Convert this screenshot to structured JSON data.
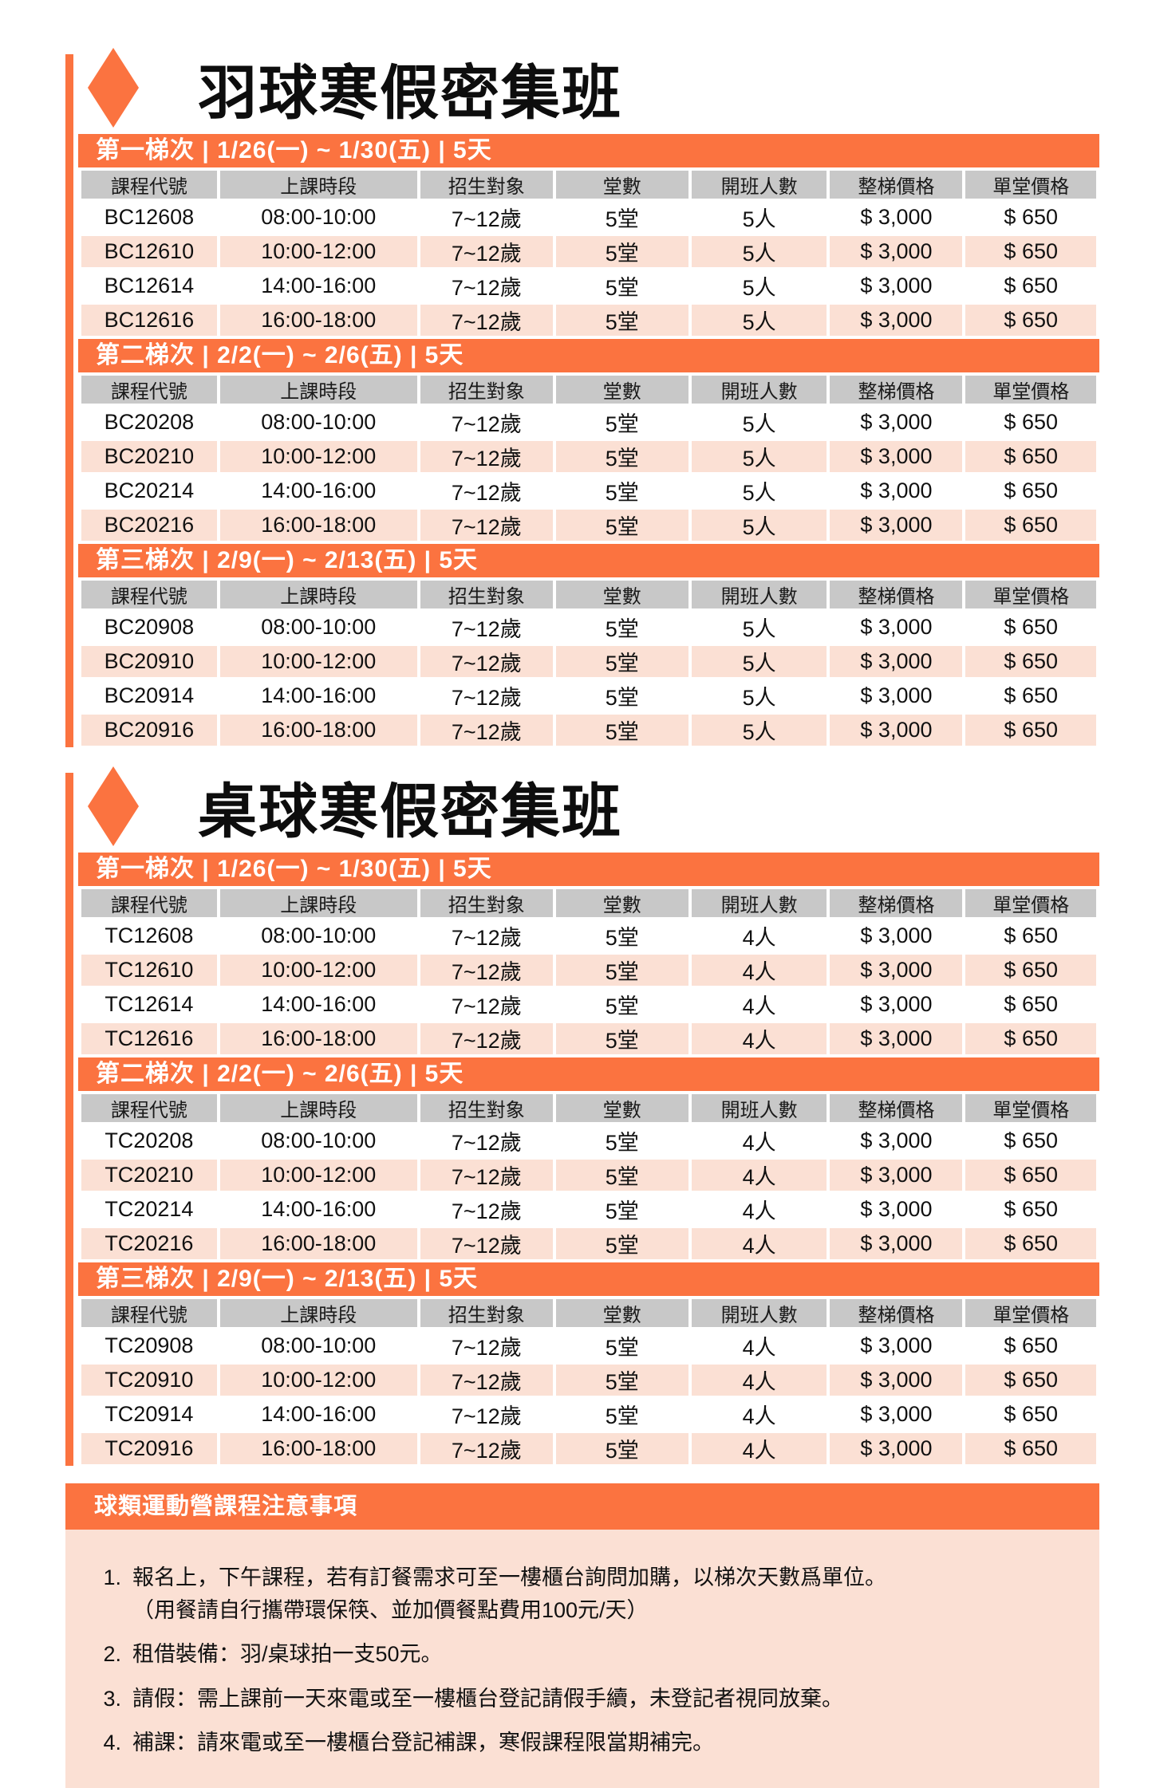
{
  "colors": {
    "accent_orange": "#FB7340",
    "row_pink": "#FBE0D4",
    "header_gray": "#C8C8C8",
    "text_black": "#111111",
    "bar_text_white": "#FFFFFF"
  },
  "table_headers": [
    "課程代號",
    "上課時段",
    "招生對象",
    "堂數",
    "開班人數",
    "整梯價格",
    "單堂價格"
  ],
  "sections": [
    {
      "id": "badminton",
      "title": "羽球寒假密集班",
      "icon": "diamond-icon",
      "sessions": [
        {
          "label": "第一梯次 | 1/26(一) ~ 1/30(五) | 5天",
          "rows": [
            [
              "BC12608",
              "08:00-10:00",
              "7~12歲",
              "5堂",
              "5人",
              "$ 3,000",
              "$ 650"
            ],
            [
              "BC12610",
              "10:00-12:00",
              "7~12歲",
              "5堂",
              "5人",
              "$ 3,000",
              "$ 650"
            ],
            [
              "BC12614",
              "14:00-16:00",
              "7~12歲",
              "5堂",
              "5人",
              "$ 3,000",
              "$ 650"
            ],
            [
              "BC12616",
              "16:00-18:00",
              "7~12歲",
              "5堂",
              "5人",
              "$ 3,000",
              "$ 650"
            ]
          ]
        },
        {
          "label": "第二梯次 | 2/2(一) ~ 2/6(五) | 5天",
          "rows": [
            [
              "BC20208",
              "08:00-10:00",
              "7~12歲",
              "5堂",
              "5人",
              "$ 3,000",
              "$ 650"
            ],
            [
              "BC20210",
              "10:00-12:00",
              "7~12歲",
              "5堂",
              "5人",
              "$ 3,000",
              "$ 650"
            ],
            [
              "BC20214",
              "14:00-16:00",
              "7~12歲",
              "5堂",
              "5人",
              "$ 3,000",
              "$ 650"
            ],
            [
              "BC20216",
              "16:00-18:00",
              "7~12歲",
              "5堂",
              "5人",
              "$ 3,000",
              "$ 650"
            ]
          ]
        },
        {
          "label": "第三梯次 | 2/9(一) ~ 2/13(五) | 5天",
          "rows": [
            [
              "BC20908",
              "08:00-10:00",
              "7~12歲",
              "5堂",
              "5人",
              "$ 3,000",
              "$ 650"
            ],
            [
              "BC20910",
              "10:00-12:00",
              "7~12歲",
              "5堂",
              "5人",
              "$ 3,000",
              "$ 650"
            ],
            [
              "BC20914",
              "14:00-16:00",
              "7~12歲",
              "5堂",
              "5人",
              "$ 3,000",
              "$ 650"
            ],
            [
              "BC20916",
              "16:00-18:00",
              "7~12歲",
              "5堂",
              "5人",
              "$ 3,000",
              "$ 650"
            ]
          ]
        }
      ]
    },
    {
      "id": "table-tennis",
      "title": "桌球寒假密集班",
      "icon": "diamond-icon",
      "sessions": [
        {
          "label": "第一梯次 | 1/26(一) ~ 1/30(五) | 5天",
          "rows": [
            [
              "TC12608",
              "08:00-10:00",
              "7~12歲",
              "5堂",
              "4人",
              "$ 3,000",
              "$ 650"
            ],
            [
              "TC12610",
              "10:00-12:00",
              "7~12歲",
              "5堂",
              "4人",
              "$ 3,000",
              "$ 650"
            ],
            [
              "TC12614",
              "14:00-16:00",
              "7~12歲",
              "5堂",
              "4人",
              "$ 3,000",
              "$ 650"
            ],
            [
              "TC12616",
              "16:00-18:00",
              "7~12歲",
              "5堂",
              "4人",
              "$ 3,000",
              "$ 650"
            ]
          ]
        },
        {
          "label": "第二梯次 | 2/2(一) ~ 2/6(五) | 5天",
          "rows": [
            [
              "TC20208",
              "08:00-10:00",
              "7~12歲",
              "5堂",
              "4人",
              "$ 3,000",
              "$ 650"
            ],
            [
              "TC20210",
              "10:00-12:00",
              "7~12歲",
              "5堂",
              "4人",
              "$ 3,000",
              "$ 650"
            ],
            [
              "TC20214",
              "14:00-16:00",
              "7~12歲",
              "5堂",
              "4人",
              "$ 3,000",
              "$ 650"
            ],
            [
              "TC20216",
              "16:00-18:00",
              "7~12歲",
              "5堂",
              "4人",
              "$ 3,000",
              "$ 650"
            ]
          ]
        },
        {
          "label": "第三梯次 | 2/9(一) ~ 2/13(五) | 5天",
          "rows": [
            [
              "TC20908",
              "08:00-10:00",
              "7~12歲",
              "5堂",
              "4人",
              "$ 3,000",
              "$ 650"
            ],
            [
              "TC20910",
              "10:00-12:00",
              "7~12歲",
              "5堂",
              "4人",
              "$ 3,000",
              "$ 650"
            ],
            [
              "TC20914",
              "14:00-16:00",
              "7~12歲",
              "5堂",
              "4人",
              "$ 3,000",
              "$ 650"
            ],
            [
              "TC20916",
              "16:00-18:00",
              "7~12歲",
              "5堂",
              "4人",
              "$ 3,000",
              "$ 650"
            ]
          ]
        }
      ]
    }
  ],
  "notes": {
    "title": "球類運動營課程注意事項",
    "items": [
      {
        "num": "1.",
        "lines": [
          "報名上，下午課程，若有訂餐需求可至一樓櫃台詢問加購，以梯次天數爲單位。",
          "（用餐請自行攜帶環保筷、並加價餐點費用100元/天）"
        ]
      },
      {
        "num": "2.",
        "lines": [
          "租借裝備：羽/桌球拍一支50元。"
        ]
      },
      {
        "num": "3.",
        "lines": [
          "請假：需上課前一天來電或至一樓櫃台登記請假手續，未登記者視同放棄。"
        ]
      },
      {
        "num": "4.",
        "lines": [
          "補課：請來電或至一樓櫃台登記補課，寒假課程限當期補完。"
        ]
      }
    ]
  }
}
